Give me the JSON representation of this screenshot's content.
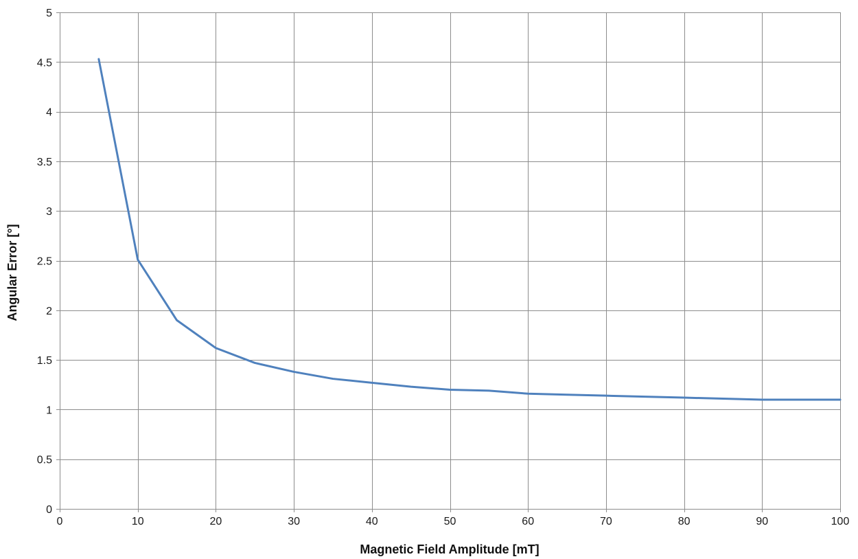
{
  "chart_data": {
    "type": "line",
    "title": "",
    "xlabel": "Magnetic Field Amplitude [mT]",
    "ylabel": "Angular Error [°]",
    "xlim": [
      0,
      100
    ],
    "ylim": [
      0,
      5
    ],
    "x_ticks": [
      0,
      10,
      20,
      30,
      40,
      50,
      60,
      70,
      80,
      90,
      100
    ],
    "y_ticks": [
      0,
      0.5,
      1,
      1.5,
      2,
      2.5,
      3,
      3.5,
      4,
      4.5,
      5
    ],
    "grid": true,
    "legend": "none",
    "series": [
      {
        "color": "#4f81bd",
        "x": [
          5,
          10,
          15,
          20,
          25,
          30,
          35,
          40,
          45,
          50,
          55,
          60,
          65,
          70,
          75,
          80,
          85,
          90,
          95,
          100
        ],
        "y": [
          4.53,
          2.51,
          1.9,
          1.62,
          1.47,
          1.38,
          1.31,
          1.27,
          1.23,
          1.2,
          1.19,
          1.16,
          1.15,
          1.14,
          1.13,
          1.12,
          1.11,
          1.1,
          1.1,
          1.1
        ]
      }
    ]
  }
}
